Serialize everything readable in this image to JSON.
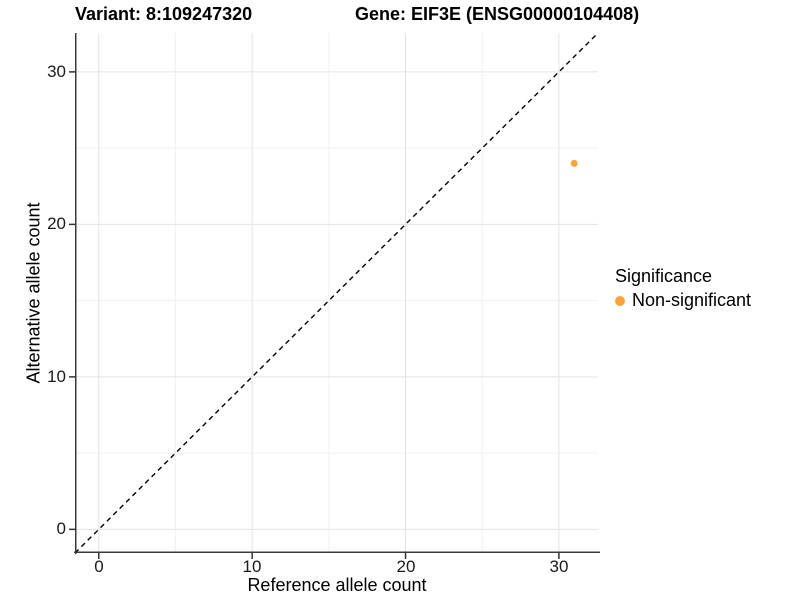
{
  "header": {
    "variant_title": "Variant: 8:109247320",
    "gene_title": "Gene: EIF3E (ENSG00000104408)"
  },
  "chart_data": {
    "type": "scatter",
    "xlabel": "Reference allele count",
    "ylabel": "Alternative allele count",
    "x_ticks": [
      0,
      10,
      20,
      30
    ],
    "y_ticks": [
      0,
      10,
      20,
      30
    ],
    "minor_breaks": [
      5,
      15,
      25
    ],
    "xlim": [
      -1.55,
      32.55
    ],
    "ylim": [
      -1.55,
      32.55
    ],
    "grid": true,
    "identity_line": {
      "equation": "y = x",
      "style": "dashed",
      "color": "#000000"
    },
    "series": [
      {
        "name": "Non-significant",
        "color": "#FAA43C",
        "points": [
          {
            "x": 31,
            "y": 24
          }
        ]
      }
    ],
    "legend": {
      "title": "Significance",
      "position": "right",
      "entries": [
        {
          "label": "Non-significant",
          "color": "#FAA43C"
        }
      ]
    },
    "colors": {
      "grid_major": "#E3E3E3",
      "grid_minor": "#F1F1F1",
      "axis_line": "#3A3A3A",
      "tick_mark": "#333333"
    }
  }
}
